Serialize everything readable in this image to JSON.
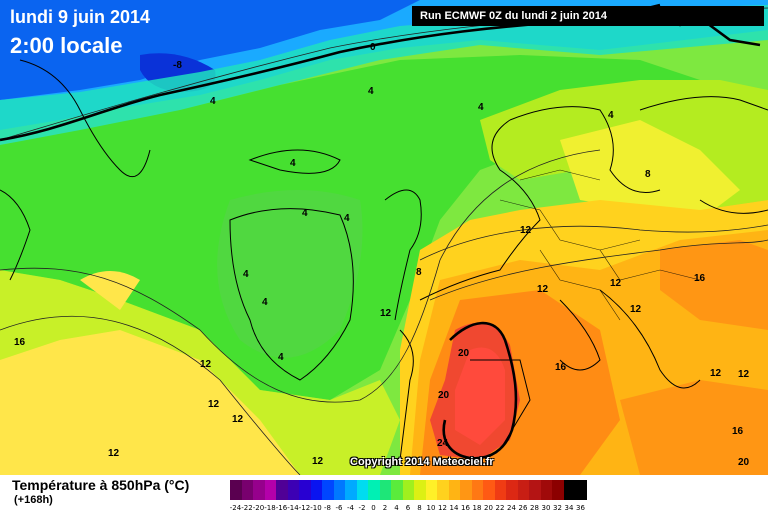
{
  "header": {
    "date": "lundi 9 juin 2014",
    "time": "2:00 locale",
    "run": "Run ECMWF 0Z du lundi 2 juin 2014"
  },
  "footer": {
    "variable": "Température à 850hPa (°C)",
    "lead": "(+168h)",
    "copyright": "Copyright 2014 Meteociel.fr"
  },
  "colorbar": {
    "labels": [
      "-24",
      "-22",
      "-20",
      "-18",
      "-16",
      "-14",
      "-12",
      "-10",
      "-8",
      "-6",
      "-4",
      "-2",
      "0",
      "2",
      "4",
      "6",
      "8",
      "10",
      "12",
      "14",
      "16",
      "18",
      "20",
      "22",
      "24",
      "26",
      "28",
      "30",
      "32",
      "34",
      "36"
    ],
    "colors": [
      "#5a0050",
      "#78006e",
      "#96008c",
      "#b400aa",
      "#500096",
      "#3c00b4",
      "#2800d2",
      "#0a14f0",
      "#0046ff",
      "#0078ff",
      "#00aaff",
      "#00dcf0",
      "#00f0b4",
      "#1ee678",
      "#5aeb3c",
      "#a0f01e",
      "#dcf014",
      "#fff028",
      "#ffd21e",
      "#ffb414",
      "#ff9614",
      "#ff7814",
      "#ff5a14",
      "#f03c14",
      "#dc2814",
      "#c81e14",
      "#b41414",
      "#a00a0a",
      "#8c0000",
      "#000000",
      "#000000"
    ]
  },
  "isotherm_labels": [
    "0",
    "-8",
    "4",
    "4",
    "4",
    "4",
    "8",
    "12",
    "12",
    "16",
    "12",
    "12",
    "12",
    "12",
    "16",
    "16",
    "20",
    "20",
    "20",
    "24",
    "4",
    "4",
    "4",
    "4",
    "4",
    "4",
    "12",
    "12",
    "12",
    "12",
    "12",
    "8",
    "12",
    "16"
  ]
}
